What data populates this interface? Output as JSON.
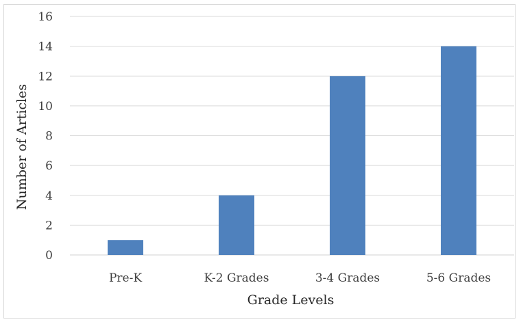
{
  "chart_data": {
    "type": "bar",
    "categories": [
      "Pre-K",
      "K-2 Grades",
      "3-4 Grades",
      "5-6 Grades"
    ],
    "values": [
      1,
      4,
      12,
      14
    ],
    "title": "",
    "xlabel": "Grade Levels",
    "ylabel": "Number of Articles",
    "ylim": [
      0,
      16
    ],
    "yticks": [
      "0",
      "2",
      "4",
      "6",
      "8",
      "10",
      "12",
      "14",
      "16"
    ],
    "grid": true,
    "legend": "none",
    "bar_color": "#4f81bd",
    "grid_color": "#d9d9d9"
  }
}
